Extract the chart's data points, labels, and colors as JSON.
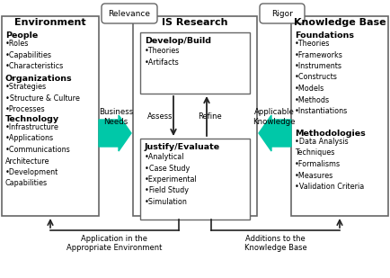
{
  "bg_color": "#ffffff",
  "env_title": "Environment",
  "kb_title": "Knowledge Base",
  "is_title": "IS Research",
  "relevance_label": "Relevance",
  "rigor_label": "Rigor",
  "business_needs": "Business\nNeeds",
  "applicable_knowledge": "Applicable\nKnowledge",
  "assess_label": "Assess",
  "refine_label": "Refine",
  "app_label": "Application in the\nAppropriate Environment",
  "additions_label": "Additions to the\nKnowledge Base",
  "develop_title": "Develop/Build",
  "develop_items": "•Theories\n•Artifacts",
  "justify_title": "Justify/Evaluate",
  "justify_items": "•Analytical\n•Case Study\n•Experimental\n•Field Study\n•Simulation",
  "people_title": "People",
  "people_items": "•Roles\n•Capabilities\n•Characteristics",
  "org_title": "Organizations",
  "org_items": "•Strategies\n•Structure & Culture\n•Processes",
  "tech_title": "Technology",
  "tech_items": "•Infrastructure\n•Applications\n•Communications\nArchitecture\n•Development\nCapabilities",
  "found_title": "Foundations",
  "found_items": "•Theories\n•Frameworks\n•Instruments\n•Constructs\n•Models\n•Methods\n•Instantiations",
  "method_title": "Methodologies",
  "method_items": "•Data Analysis\nTechniques\n•Formalisms\n•Measures\n•Validation Criteria",
  "teal_color": "#00c8a8",
  "edge_color": "#666666",
  "arrow_color": "#222222",
  "text_color": "#000000"
}
